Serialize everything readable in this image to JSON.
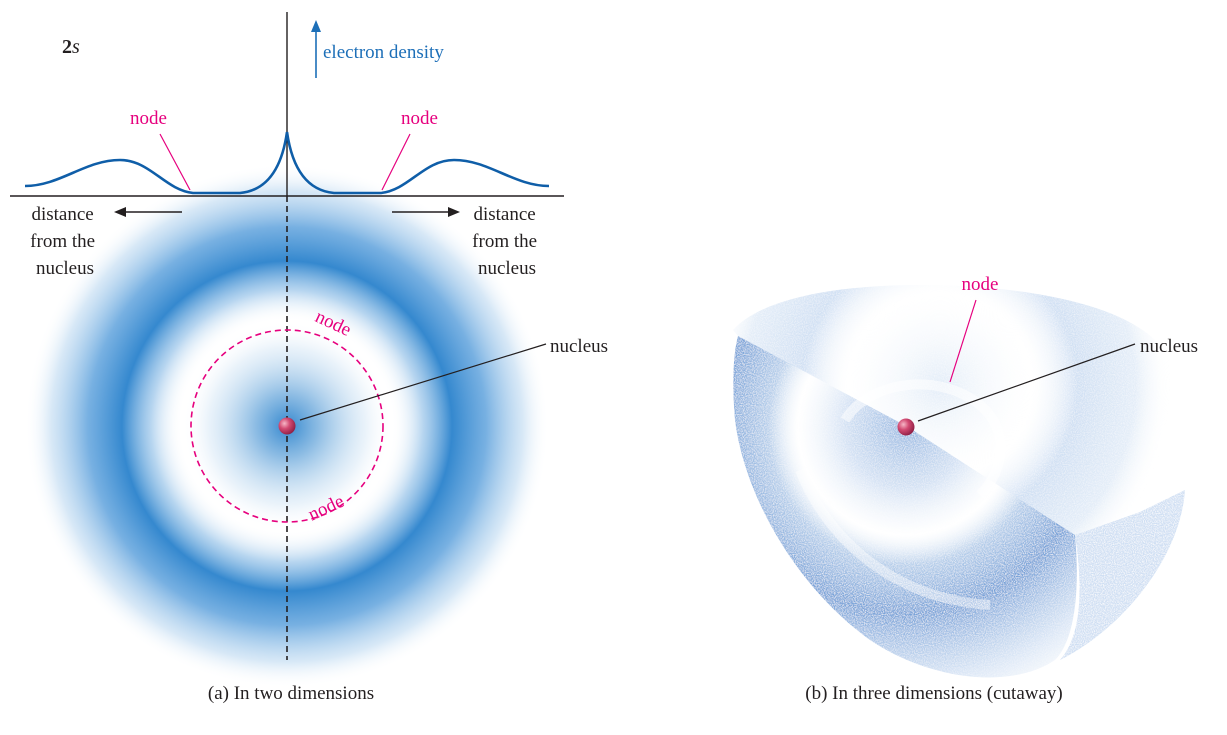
{
  "panel_a": {
    "orbital_label_num": "2",
    "orbital_label_letter": "s",
    "axis_label": "electron density",
    "node_left": "node",
    "node_right": "node",
    "distance_left": [
      "distance",
      "from the",
      "nucleus"
    ],
    "distance_right": [
      "distance",
      "from the",
      "nucleus"
    ],
    "node_ring_top": "node",
    "node_ring_bottom": "node",
    "nucleus_label": "nucleus",
    "caption": "(a) In two dimensions"
  },
  "panel_b": {
    "node_label": "node",
    "nucleus_label": "nucleus",
    "caption": "(b) In three dimensions (cutaway)"
  },
  "colors": {
    "density_blue": "#1c7ccc",
    "curve_blue": "#0f5ea8",
    "node_pink": "#e6007e",
    "nucleus": "#c2305a",
    "cloud_3d": "#5b8fd0",
    "text": "#231f20"
  }
}
